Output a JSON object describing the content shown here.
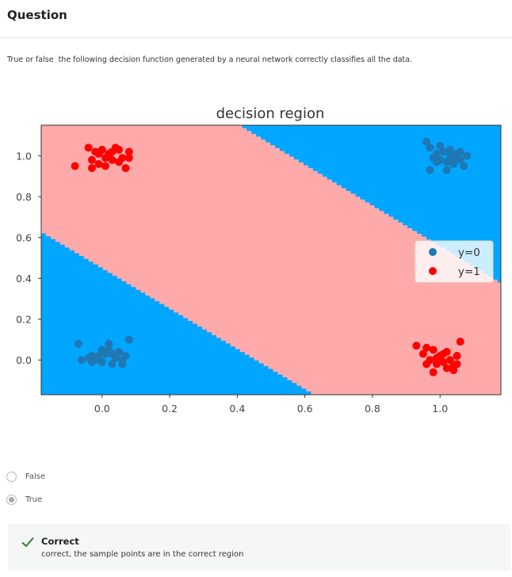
{
  "header": {
    "title": "Question"
  },
  "question": {
    "prompt": "True or false  the following decision function generated by a neural network correctly classifies all the data."
  },
  "colors": {
    "region_y0": "#00a6ff",
    "region_y1": "#ffaaaa",
    "class_y0": "#1f77b4",
    "class_y1": "#ff0000"
  },
  "chart_data": {
    "type": "scatter",
    "title": "decision region",
    "xlabel": "",
    "ylabel": "",
    "xlim": [
      -0.18,
      1.18
    ],
    "ylim": [
      -0.17,
      1.15
    ],
    "xticks": [
      "0.0",
      "0.2",
      "0.4",
      "0.6",
      "0.8",
      "1.0"
    ],
    "yticks": [
      "0.0",
      "0.2",
      "0.4",
      "0.6",
      "0.8",
      "1.0"
    ],
    "grid": false,
    "legend_position": "center-right",
    "decision_boundary": {
      "lower_line": [
        [
          -0.18,
          0.62
        ],
        [
          0.62,
          -0.17
        ]
      ],
      "upper_line": [
        [
          0.4,
          1.15
        ],
        [
          1.18,
          0.37
        ]
      ],
      "between_lines_class": "y=1",
      "outside_lines_class": "y=0"
    },
    "series": [
      {
        "name": "y=0",
        "color": "#1f77b4",
        "points": [
          [
            -0.07,
            0.08
          ],
          [
            -0.06,
            0.0
          ],
          [
            -0.04,
            0.01
          ],
          [
            -0.03,
            0.02
          ],
          [
            -0.02,
            0.0
          ],
          [
            -0.01,
            0.02
          ],
          [
            0.0,
            -0.01
          ],
          [
            0.01,
            0.03
          ],
          [
            0.02,
            0.05
          ],
          [
            0.02,
            0.08
          ],
          [
            0.03,
            -0.02
          ],
          [
            0.04,
            0.01
          ],
          [
            0.05,
            0.04
          ],
          [
            0.06,
            0.0
          ],
          [
            0.06,
            -0.02
          ],
          [
            0.07,
            0.02
          ],
          [
            0.08,
            0.1
          ],
          [
            0.0,
            0.05
          ],
          [
            -0.03,
            -0.01
          ],
          [
            0.03,
            0.03
          ],
          [
            0.96,
            1.07
          ],
          [
            0.97,
            1.04
          ],
          [
            0.98,
            0.99
          ],
          [
            0.99,
            1.01
          ],
          [
            1.0,
            0.98
          ],
          [
            1.01,
            1.02
          ],
          [
            1.02,
            0.97
          ],
          [
            1.03,
            1.0
          ],
          [
            1.04,
            0.99
          ],
          [
            1.05,
            1.01
          ],
          [
            1.06,
            0.98
          ],
          [
            1.07,
            0.95
          ],
          [
            1.08,
            1.0
          ],
          [
            1.04,
            0.96
          ],
          [
            0.97,
            0.93
          ],
          [
            1.0,
            1.05
          ],
          [
            1.02,
            0.93
          ],
          [
            1.06,
            1.02
          ],
          [
            0.99,
            0.97
          ],
          [
            1.03,
            1.03
          ]
        ]
      },
      {
        "name": "y=1",
        "color": "#ff0000",
        "points": [
          [
            -0.08,
            0.95
          ],
          [
            -0.04,
            1.04
          ],
          [
            -0.03,
            0.98
          ],
          [
            -0.02,
            1.02
          ],
          [
            -0.01,
            0.96
          ],
          [
            0.0,
            1.03
          ],
          [
            0.01,
            0.99
          ],
          [
            0.02,
            1.01
          ],
          [
            0.03,
            0.98
          ],
          [
            0.04,
            1.04
          ],
          [
            0.05,
            0.97
          ],
          [
            0.06,
            0.99
          ],
          [
            0.07,
            0.94
          ],
          [
            0.08,
            1.02
          ],
          [
            0.08,
            0.99
          ],
          [
            -0.03,
            0.94
          ],
          [
            0.01,
            0.95
          ],
          [
            0.03,
            1.02
          ],
          [
            -0.01,
            1.01
          ],
          [
            0.05,
            1.03
          ],
          [
            0.93,
            0.07
          ],
          [
            0.95,
            0.03
          ],
          [
            0.96,
            0.06
          ],
          [
            0.97,
            0.0
          ],
          [
            0.98,
            0.05
          ],
          [
            0.99,
            -0.02
          ],
          [
            1.0,
            0.02
          ],
          [
            1.01,
            -0.01
          ],
          [
            1.02,
            0.04
          ],
          [
            1.03,
            0.0
          ],
          [
            1.04,
            -0.03
          ],
          [
            1.05,
            0.02
          ],
          [
            0.98,
            -0.06
          ],
          [
            1.06,
            0.09
          ],
          [
            1.04,
            -0.05
          ],
          [
            0.96,
            -0.02
          ],
          [
            1.01,
            0.03
          ],
          [
            0.99,
            0.01
          ],
          [
            1.02,
            -0.04
          ],
          [
            1.05,
            -0.02
          ]
        ]
      }
    ]
  },
  "options": [
    {
      "label": "False",
      "selected": false
    },
    {
      "label": "True",
      "selected": true
    }
  ],
  "feedback": {
    "status": "Correct",
    "message": "correct, the sample points are in the correct region"
  }
}
